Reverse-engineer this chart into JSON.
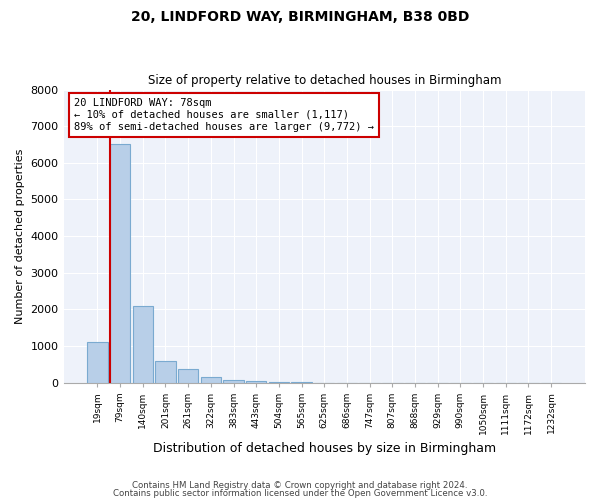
{
  "title1": "20, LINDFORD WAY, BIRMINGHAM, B38 0BD",
  "title2": "Size of property relative to detached houses in Birmingham",
  "xlabel": "Distribution of detached houses by size in Birmingham",
  "ylabel": "Number of detached properties",
  "categories": [
    "19sqm",
    "79sqm",
    "140sqm",
    "201sqm",
    "261sqm",
    "322sqm",
    "383sqm",
    "443sqm",
    "504sqm",
    "565sqm",
    "625sqm",
    "686sqm",
    "747sqm",
    "807sqm",
    "868sqm",
    "929sqm",
    "990sqm",
    "1050sqm",
    "1111sqm",
    "1172sqm",
    "1232sqm"
  ],
  "values": [
    1100,
    6500,
    2100,
    600,
    370,
    150,
    70,
    50,
    10,
    5,
    0,
    0,
    0,
    0,
    0,
    0,
    0,
    0,
    0,
    0,
    0
  ],
  "bar_color": "#b8cfe8",
  "bar_edge_color": "#7aaad0",
  "vline_color": "#cc0000",
  "annotation_text": "20 LINDFORD WAY: 78sqm\n← 10% of detached houses are smaller (1,117)\n89% of semi-detached houses are larger (9,772) →",
  "annotation_box_color": "#ffffff",
  "annotation_box_edge": "#cc0000",
  "ylim": [
    0,
    8000
  ],
  "yticks": [
    0,
    1000,
    2000,
    3000,
    4000,
    5000,
    6000,
    7000,
    8000
  ],
  "background_color": "#eef2fa",
  "footer1": "Contains HM Land Registry data © Crown copyright and database right 2024.",
  "footer2": "Contains public sector information licensed under the Open Government Licence v3.0."
}
